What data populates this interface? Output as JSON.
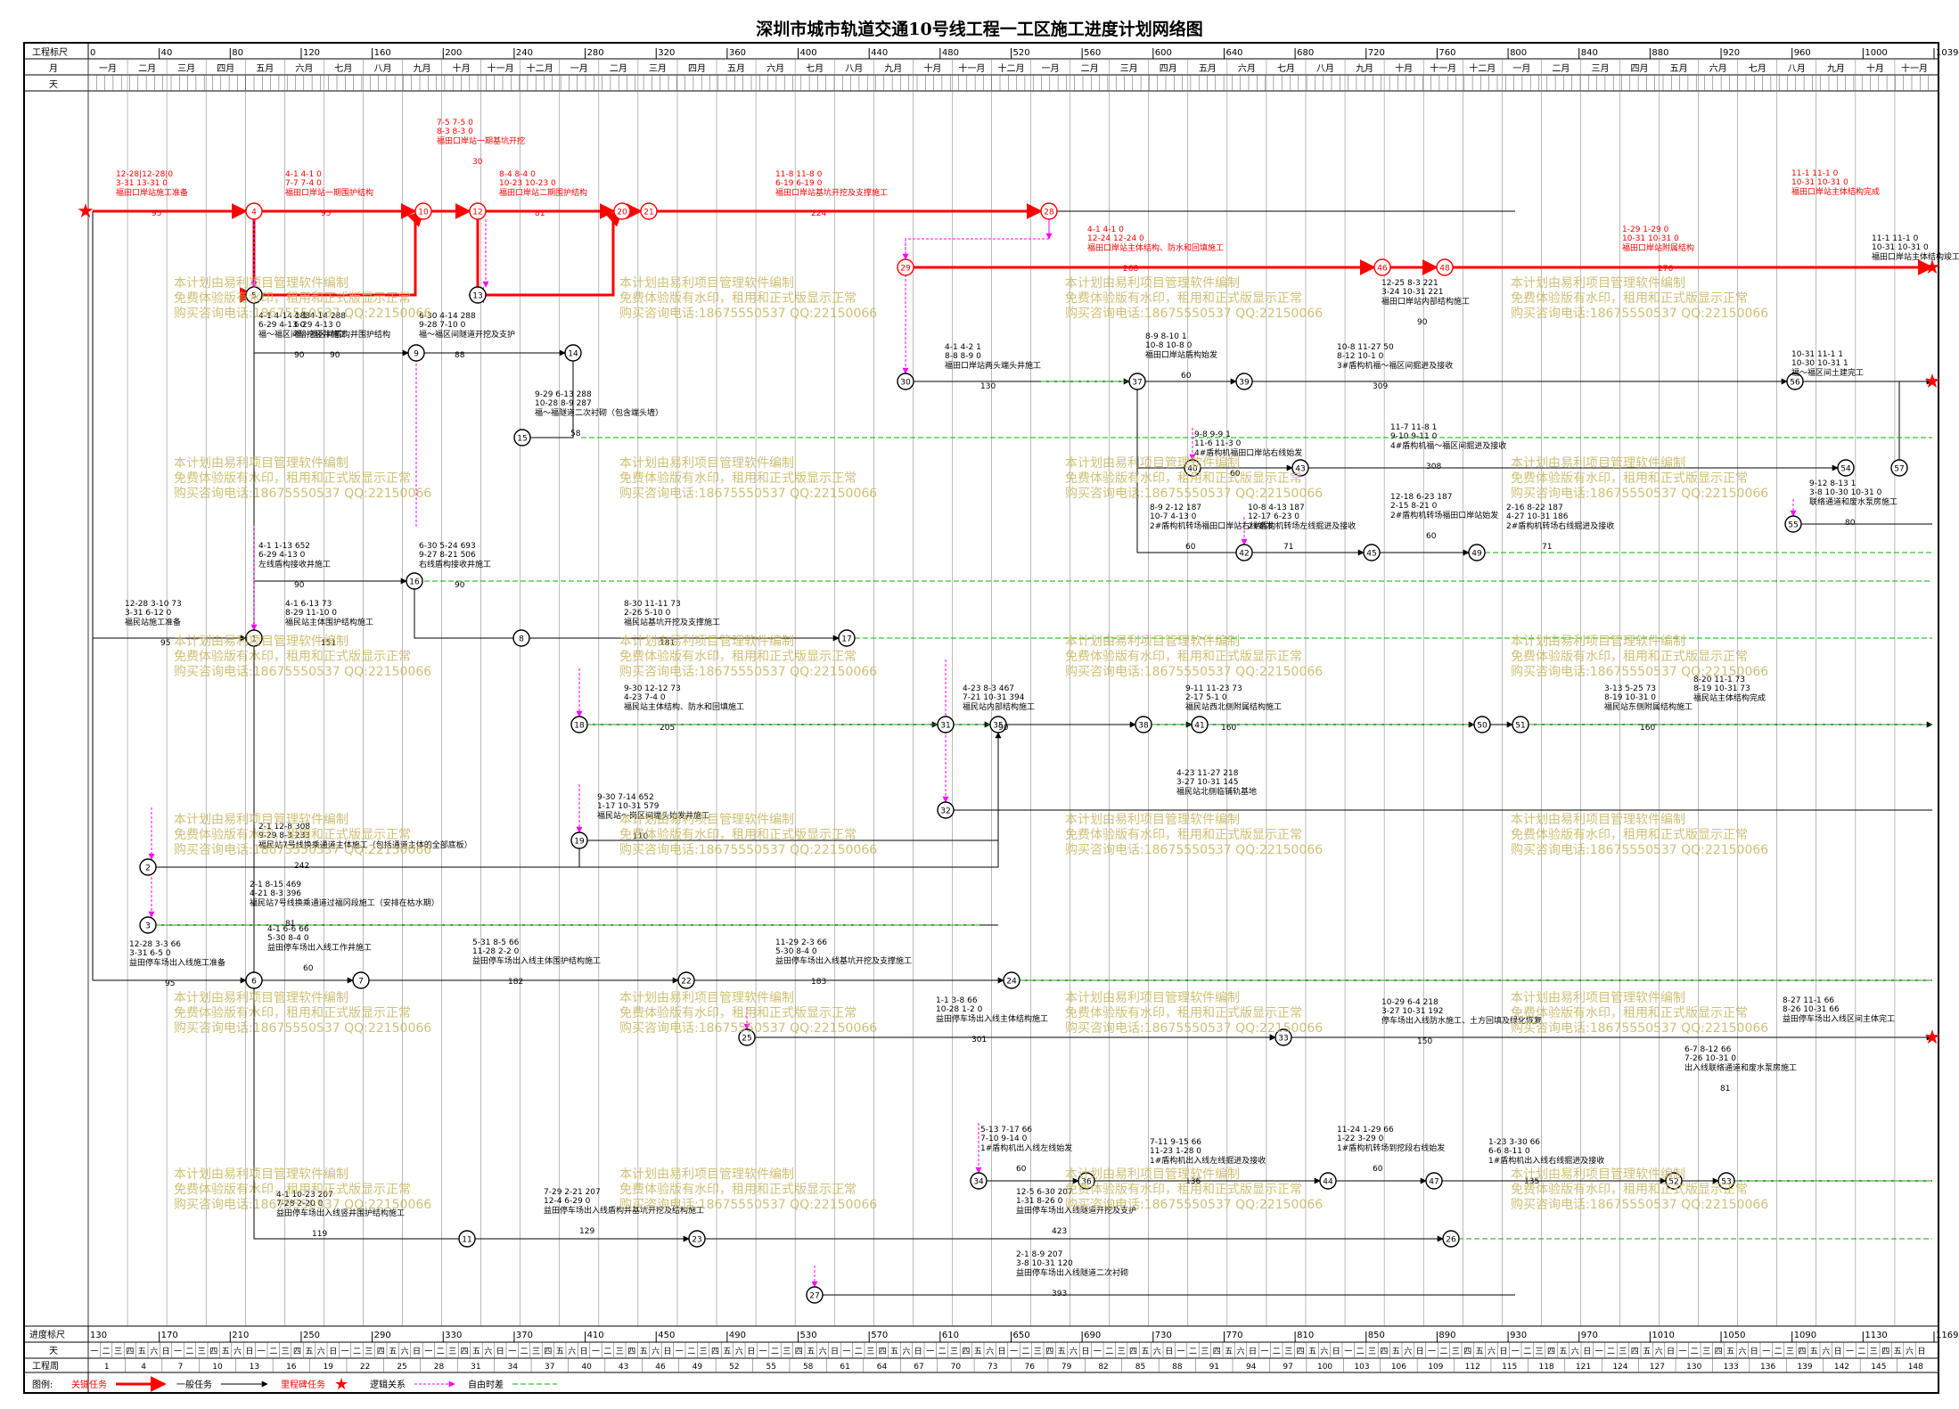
{
  "title": "深圳市城市轨道交通10号线工程一工区施工进度计划网络图",
  "scale": {
    "row1_label": "工程标尺",
    "row2_label": "月",
    "row3_label": "天",
    "top_ticks": [
      "0",
      "40",
      "80",
      "120",
      "160",
      "200",
      "240",
      "280",
      "320",
      "360",
      "400",
      "440",
      "480",
      "520",
      "560",
      "600",
      "640",
      "680",
      "720",
      "760",
      "800",
      "840",
      "880",
      "920",
      "960",
      "1000",
      "1039"
    ],
    "months": [
      "一月",
      "二月",
      "三月",
      "四月",
      "五月",
      "六月",
      "七月",
      "八月",
      "九月",
      "十月",
      "十一月",
      "十二月",
      "一月",
      "二月",
      "三月",
      "四月",
      "五月",
      "六月",
      "七月",
      "八月",
      "九月",
      "十月",
      "十一月",
      "十二月",
      "一月",
      "二月",
      "三月",
      "四月",
      "五月",
      "六月",
      "七月",
      "八月",
      "九月",
      "十月",
      "十一月",
      "十二月",
      "一月",
      "二月",
      "三月",
      "四月",
      "五月",
      "六月",
      "七月",
      "八月",
      "九月",
      "十月",
      "十一月"
    ],
    "bottom_row1_label": "进度标尺",
    "bottom_row2_label": "天",
    "bottom_row3_label": "工程周",
    "bottom_ticks": [
      "130",
      "170",
      "210",
      "250",
      "290",
      "330",
      "370",
      "410",
      "450",
      "490",
      "530",
      "570",
      "610",
      "650",
      "690",
      "730",
      "770",
      "810",
      "850",
      "890",
      "930",
      "970",
      "1010",
      "1050",
      "1090",
      "1130",
      "1169"
    ],
    "weekdays": [
      "一",
      "二",
      "三",
      "四",
      "五",
      "六",
      "日"
    ],
    "weeks": [
      "1",
      "4",
      "7",
      "10",
      "13",
      "16",
      "19",
      "22",
      "25",
      "28",
      "31",
      "34",
      "37",
      "40",
      "43",
      "46",
      "49",
      "52",
      "55",
      "58",
      "61",
      "64",
      "67",
      "70",
      "73",
      "76",
      "79",
      "82",
      "85",
      "88",
      "91",
      "94",
      "97",
      "100",
      "103",
      "106",
      "109",
      "112",
      "115",
      "118",
      "121",
      "124",
      "127",
      "130",
      "133",
      "136",
      "139",
      "142",
      "145",
      "148"
    ]
  },
  "legend": {
    "label": "图例:",
    "critical_task": "关键任务",
    "normal_task": "一般任务",
    "milestone": "里程碑任务",
    "logic": "逻辑关系",
    "float": "自由时差"
  },
  "watermark": [
    "本计划由易利项目管理软件编制",
    "免费体验版有水印，租用和正式版显示正常",
    "购买咨询电话:18675550537 QQ:22150066"
  ],
  "colors": {
    "critical": "#ff0000",
    "normal": "#000000",
    "logic": "#ff00ff",
    "float": "#00b400",
    "watermark": "#c7b55e",
    "grid": "#000000"
  },
  "nodes": [
    "1",
    "2",
    "3",
    "4",
    "5",
    "6",
    "7",
    "8",
    "9",
    "10",
    "11",
    "12",
    "13",
    "14",
    "15",
    "16",
    "17",
    "18",
    "19",
    "20",
    "21",
    "22",
    "23",
    "24",
    "25",
    "26",
    "27",
    "28",
    "29",
    "30",
    "31",
    "32",
    "33",
    "34",
    "35",
    "36",
    "37",
    "38",
    "39",
    "40",
    "41",
    "42",
    "43",
    "44",
    "45",
    "46",
    "47",
    "48",
    "49",
    "50",
    "51",
    "52",
    "53",
    "54",
    "55",
    "56",
    "57"
  ],
  "activities": [
    {
      "name": "福田口岸站施工准备",
      "dates": "12-28|12-28|0\n3-31 13-31 0",
      "dur": "95"
    },
    {
      "name": "福田口岸站一期围护结构",
      "dates": "4-1 4-1 0\n7-7 7-4 0",
      "dur": "95"
    },
    {
      "name": "福田口岸站一期基坑开挖",
      "dates": "7-5 7-5 0\n8-3 8-3 0",
      "dur": "30"
    },
    {
      "name": "福田口岸站二期围护结构",
      "dates": "8-4 8-4 0\n10-23 10-23 0",
      "dur": "81"
    },
    {
      "name": "福田口岸站基坑开挖及支撑施工",
      "dates": "11-8 11-8 0\n6-19 6-19 0",
      "dur": "224"
    },
    {
      "name": "福田口岸站主体结构、防水和回填施工",
      "dates": "4-1 4-1 0\n12-24 12-24 0",
      "dur": "268"
    },
    {
      "name": "福田口岸站内部结构施工",
      "dates": "12-25 8-3 221\n3-24 10-31 221",
      "dur": "90"
    },
    {
      "name": "福田口岸站附属结构",
      "dates": "1-29 1-29 0\n10-31 10-31 0",
      "dur": "276"
    },
    {
      "name": "福田口岸站主体结构完成",
      "dates": "11-1 11-1 0\n10-31 10-31 0",
      "dur": ""
    },
    {
      "name": "福田口岸站主体结构竣工",
      "dates": "11-1 11-1 0\n10-31 10-31 0",
      "dur": ""
    },
    {
      "name": "福田口岸站两头端头井施工",
      "dates": "4-1 4-2 1\n8-8 8-9 0",
      "dur": "130"
    },
    {
      "name": "福田口岸站盾构始发",
      "dates": "8-9 8-10 1\n10-8 10-8 0",
      "dur": "60"
    },
    {
      "name": "3#盾构机福～福区间掘进及接收",
      "dates": "10-8 11-27 50\n8-12 10-1 0",
      "dur": "309"
    },
    {
      "name": "福～福区间盾构井围护结构",
      "dates": "4-1 4-14 288\n6-29 4-13 0",
      "dur": "90"
    },
    {
      "name": "福～福区间暗挖竖井施工",
      "dates": "4-1 4-14 288\n6-29 4-13 0",
      "dur": "90"
    },
    {
      "name": "福～福区间隧道开挖及支护",
      "dates": "6-30 4-14 288\n9-28 7-10 0",
      "dur": "88"
    },
    {
      "name": "福～福隧道二次衬砌（包含端头墙）",
      "dates": "9-29 6-13 288\n10-28 8-9 287",
      "dur": "58"
    },
    {
      "name": "左线盾构接收井施工",
      "dates": "4-1 1-13 652\n6-29 4-13 0",
      "dur": "90"
    },
    {
      "name": "右线盾构接收井施工",
      "dates": "6-30 5-24 693\n9-27 8-21 506",
      "dur": "90"
    },
    {
      "name": "福民站施工准备",
      "dates": "12-28 3-10 73\n3-31 6-12 0",
      "dur": "95"
    },
    {
      "name": "福民站主体围护结构施工",
      "dates": "4-1 6-13 73\n8-29 11-10 0",
      "dur": "151"
    },
    {
      "name": "福民站基坑开挖及支撑施工",
      "dates": "8-30 11-11 73\n2-26 5-10 0",
      "dur": "181"
    },
    {
      "name": "福民站主体结构、防水和回填施工",
      "dates": "9-30 12-12 73\n4-23 7-4 0",
      "dur": "205"
    },
    {
      "name": "福民站内部结构施工",
      "dates": "4-23 8-3 467\n7-21 10-31 394",
      "dur": "90"
    },
    {
      "name": "福民站西北侧附属结构施工",
      "dates": "9-11 11-23 73\n2-17 5-1 0",
      "dur": "160"
    },
    {
      "name": "福民站东侧附属结构施工",
      "dates": "3-13 5-25 73\n8-19 10-31 0",
      "dur": "160"
    },
    {
      "name": "福民站主体结构完成",
      "dates": "8-20 11-1 73\n8-19 10-31 73",
      "dur": ""
    },
    {
      "name": "福民站北侧临铺轨基地",
      "dates": "4-23 11-27 218\n3-27 10-31 145",
      "dur": ""
    },
    {
      "name": "福民站～岗区间端头始发井施工",
      "dates": "9-30 7-14 652\n1-17 10-31 579",
      "dur": "110"
    },
    {
      "name": "福民站7号线换乘通道主体施工（包括通道主体的全部底板）",
      "dates": "2-1 12-8 308\n9-29 8-3 233",
      "dur": "242"
    },
    {
      "name": "福民站7号线换乘通道过福冈段施工（安排在枯水期）",
      "dates": "2-1 8-15 469\n4-21 8-3 396",
      "dur": "81"
    },
    {
      "name": "益田停车场出入线施工准备",
      "dates": "12-28 3-3 66\n3-31 6-5 0",
      "dur": "95"
    },
    {
      "name": "益田停车场出入线工作井施工",
      "dates": "4-1 6-6 66\n5-30 8-4 0",
      "dur": "60"
    },
    {
      "name": "益田停车场出入线主体围护结构施工",
      "dates": "5-31 8-5 66\n11-28 2-2 0",
      "dur": "182"
    },
    {
      "name": "益田停车场出入线基坑开挖及支撑施工",
      "dates": "11-29 2-3 66\n5-30 8-4 0",
      "dur": "183"
    },
    {
      "name": "益田停车场出入线主体结构施工",
      "dates": "1-1 3-8 66\n10-28 1-2 0",
      "dur": "301"
    },
    {
      "name": "停车场出入线防水施工、土方回填及绿化恢复",
      "dates": "10-29 6-4 218\n3-27 10-31 192",
      "dur": "150"
    },
    {
      "name": "益田停车场出入线区间主体完工",
      "dates": "8-27 11-1 66\n8-26 10-31 66",
      "dur": ""
    },
    {
      "name": "出入线联络通道和废水泵房施工",
      "dates": "6-7 8-12 66\n7-26 10-31 0",
      "dur": "81"
    },
    {
      "name": "益田停车场出入线竖井围护结构施工",
      "dates": "4-1 10-23 207\n7-28 2-20 0",
      "dur": "119"
    },
    {
      "name": "益田停车场出入线盾构井基坑开挖及结构施工",
      "dates": "7-29 2-21 207\n12-4 6-29 0",
      "dur": "129"
    },
    {
      "name": "益田停车场出入线隧道开挖及支护",
      "dates": "12-5 6-30 207\n1-31 8-26 0",
      "dur": "423"
    },
    {
      "name": "益田停车场出入线隧道二次衬砌",
      "dates": "2-1 8-9 207\n3-8 10-31 120",
      "dur": "393"
    },
    {
      "name": "1#盾构机出入线左线始发",
      "dates": "5-13 7-17 66\n7-10 9-14 0",
      "dur": "60"
    },
    {
      "name": "1#盾构机出入线左线掘进及接收",
      "dates": "7-11 9-15 66\n11-23 1-28 0",
      "dur": "136"
    },
    {
      "name": "1#盾构机转场到挖段右线始发",
      "dates": "11-24 1-29 66\n1-22 3-29 0",
      "dur": "60"
    },
    {
      "name": "1#盾构机出入线右线掘进及接收",
      "dates": "1-23 3-30 66\n6-6 8-11 0",
      "dur": "135"
    },
    {
      "name": "4#盾构机福田口岸站右线始发",
      "dates": "9-8 9-9 1\n11-6 11-3 0",
      "dur": "60"
    },
    {
      "name": "4#盾构机福～福区间掘进及接收",
      "dates": "11-7 11-8 1\n9-10 9-11 0",
      "dur": "308"
    },
    {
      "name": "2#盾构机转场福田口岸站右线始发",
      "dates": "8-9 2-12 187\n10-7 4-13 0",
      "dur": "60"
    },
    {
      "name": "2#盾构机转场左线掘进及接收",
      "dates": "10-8 4-13 187\n12-17 6-23 0",
      "dur": "71"
    },
    {
      "name": "2#盾构机转场福田口岸站始发",
      "dates": "12-18 6-23 187\n2-15 8-21 0",
      "dur": "60"
    },
    {
      "name": "2#盾构机转场右线掘进及接收",
      "dates": "2-16 8-22 187\n4-27 10-31 186",
      "dur": "71"
    },
    {
      "name": "联络通道和废水泵房施工",
      "dates": "9-12 8-13 1\n3-8 10-30 10-31 0",
      "dur": "80"
    },
    {
      "name": "福～福区间土建完工",
      "dates": "10-31 11-1 1\n10-30 10-31 1",
      "dur": ""
    }
  ]
}
